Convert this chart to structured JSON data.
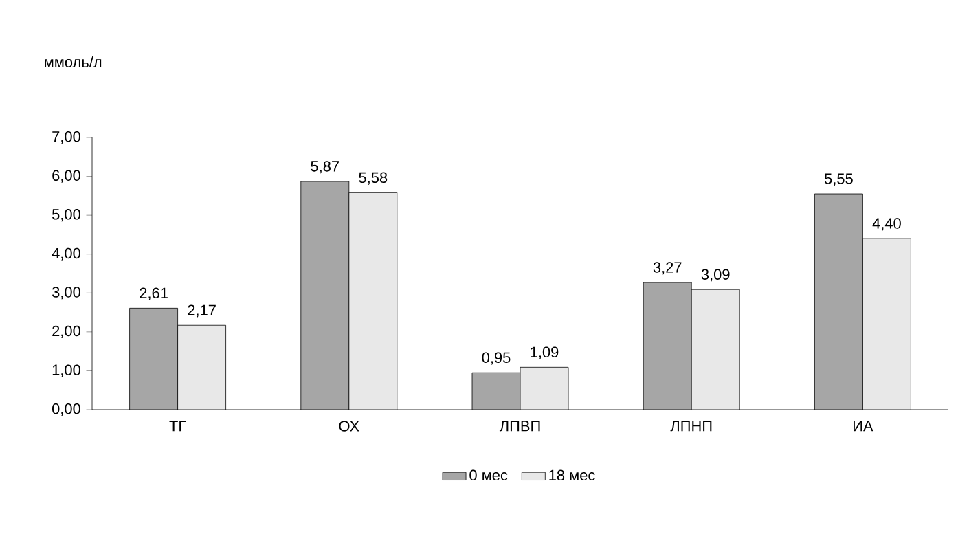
{
  "chart_data": {
    "type": "bar",
    "ylabel": "ммоль/л",
    "categories": [
      "ТГ",
      "ОХ",
      "ЛПВП",
      "ЛПНП",
      "ИА"
    ],
    "series": [
      {
        "name": "0 мес",
        "color": "#a6a6a6",
        "values": [
          2.61,
          5.87,
          0.95,
          3.27,
          5.55
        ],
        "value_labels": [
          "2,61",
          "5,87",
          "0,95",
          "3,27",
          "5,55"
        ]
      },
      {
        "name": "18 мес",
        "color": "#e8e8e8",
        "values": [
          2.17,
          5.58,
          1.09,
          3.09,
          4.4
        ],
        "value_labels": [
          "2,17",
          "5,58",
          "1,09",
          "3,09",
          "4,40"
        ]
      }
    ],
    "ylim": [
      0,
      7
    ],
    "yticks": [
      {
        "value": 0,
        "label": "0,00"
      },
      {
        "value": 1,
        "label": "1,00"
      },
      {
        "value": 2,
        "label": "2,00"
      },
      {
        "value": 3,
        "label": "3,00"
      },
      {
        "value": 4,
        "label": "4,00"
      },
      {
        "value": 5,
        "label": "5,00"
      },
      {
        "value": 6,
        "label": "6,00"
      },
      {
        "value": 7,
        "label": "7,00"
      }
    ],
    "legend": "bottom"
  }
}
